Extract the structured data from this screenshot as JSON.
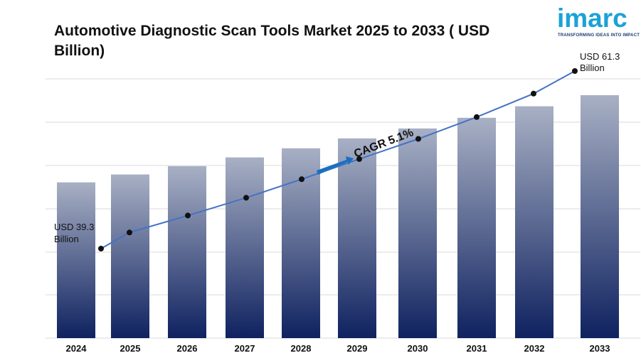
{
  "header": {
    "title": "Automotive Diagnostic Scan Tools Market 2025 to 2033 ( USD Billion)"
  },
  "brand": {
    "logo_word": "imarc",
    "tagline": "TRANSFORMING IDEAS INTO IMPACT",
    "logo_color": "#1aa2d8",
    "tagline_color": "#1b3d6f"
  },
  "chart_data": {
    "type": "bar",
    "title": "Automotive Diagnostic Scan Tools Market 2025 to 2033 ( USD Billion)",
    "xlabel": "",
    "ylabel": "",
    "categories": [
      "2024",
      "2025",
      "2026",
      "2027",
      "2028",
      "2029",
      "2030",
      "2031",
      "2032",
      "2033"
    ],
    "series": [
      {
        "type": "bar",
        "values": [
          39.3,
          41.3,
          43.4,
          45.6,
          47.9,
          50.4,
          52.9,
          55.6,
          58.5,
          61.3
        ]
      },
      {
        "type": "line",
        "values": [
          39.3,
          41.3,
          43.4,
          45.6,
          47.9,
          50.4,
          52.9,
          55.6,
          58.5,
          61.3
        ]
      }
    ],
    "ylim": [
      0,
      70
    ],
    "grid": true,
    "annotations": {
      "start_label": [
        "USD 39.3",
        "Billion"
      ],
      "end_label": [
        "USD 61.3",
        "Billion"
      ],
      "cagr": "CAGR 5.1%"
    },
    "colors": {
      "bar_top": "#a8b0c4",
      "bar_bottom": "#0f2260",
      "line": "#4472c4",
      "marker": "#111111",
      "arrow": "#1a6fc0",
      "grid": "#d9d9d9"
    }
  }
}
